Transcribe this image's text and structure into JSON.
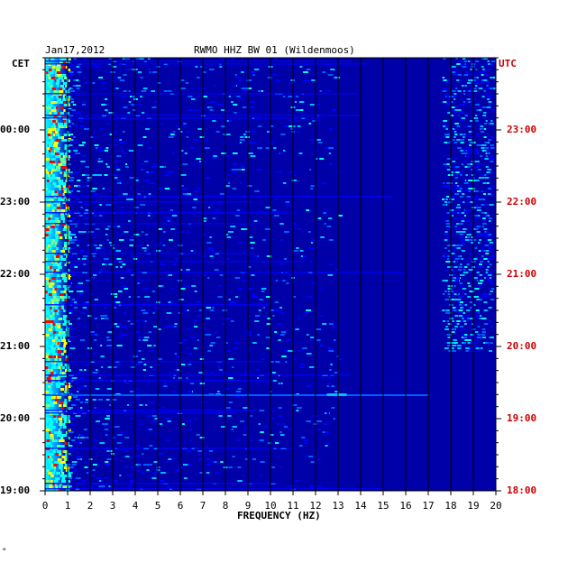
{
  "header": {
    "date": "Jan17,2012",
    "station": "RWMO HHZ BW 01 (Wildenmoos)",
    "left_zone": "CET",
    "right_zone": "UTC"
  },
  "footer": {
    "mark": "\""
  },
  "colors": {
    "background": "#0000a8",
    "utc_labels": "#cc0000",
    "grid": "#000000",
    "palette": [
      "#0000a8",
      "#0000ff",
      "#0060ff",
      "#00c0ff",
      "#00ffff",
      "#80ff80",
      "#ffff00",
      "#ff8000",
      "#ff0000"
    ]
  },
  "chart_data": {
    "type": "heatmap",
    "title": "RWMO HHZ BW 01 (Wildenmoos)",
    "date": "Jan17,2012",
    "xlabel": "FREQUENCY (HZ)",
    "xlim": [
      0,
      20
    ],
    "x_ticks": [
      "0",
      "1",
      "2",
      "3",
      "4",
      "5",
      "6",
      "7",
      "8",
      "9",
      "10",
      "11",
      "12",
      "13",
      "14",
      "15",
      "16",
      "17",
      "18",
      "19",
      "20"
    ],
    "y_left_label": "CET",
    "y_left_ticks": [
      "00:00",
      "23:00",
      "22:00",
      "21:00",
      "20:00",
      "19:00"
    ],
    "y_right_label": "UTC",
    "y_right_ticks": [
      "23:00",
      "22:00",
      "21:00",
      "20:00",
      "19:00",
      "18:00"
    ],
    "grid": true,
    "features": [
      {
        "note_free": true,
        "freq_range": [
          0,
          1
        ],
        "intensity": "high"
      },
      {
        "note_free": true,
        "freq_range": [
          17.5,
          20
        ],
        "intensity": "medium"
      }
    ]
  }
}
